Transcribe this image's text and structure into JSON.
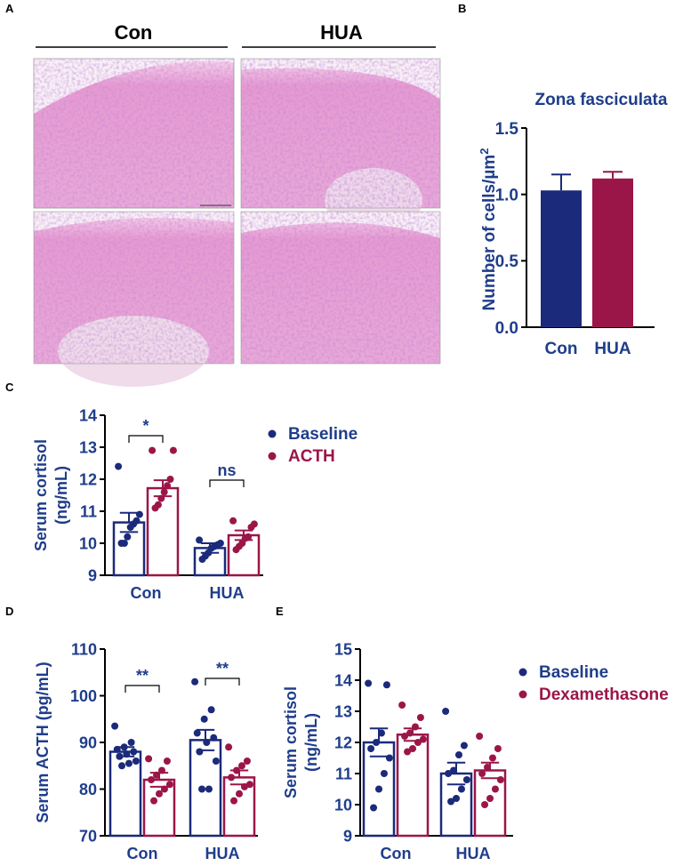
{
  "colors": {
    "navy": "#1b2a7a",
    "crimson": "#9b1648",
    "axis_text": "#1f3d8a",
    "black": "#000000",
    "micro_bg": "#eaa6d6"
  },
  "panels": {
    "A": {
      "letter": "A",
      "group_labels": [
        "Con",
        "HUA"
      ]
    },
    "B": {
      "letter": "B"
    },
    "C": {
      "letter": "C"
    },
    "D": {
      "letter": "D"
    },
    "E": {
      "letter": "E"
    }
  },
  "chart_data": [
    {
      "id": "B",
      "type": "bar",
      "title": "Zona fasciculata",
      "ylabel": "Number of cells/µm²",
      "ylabel_main": "Number of cells/µm",
      "ylabel_sup": "2",
      "categories": [
        "Con",
        "HUA"
      ],
      "values": [
        1.03,
        1.12
      ],
      "errors": [
        0.12,
        0.05
      ],
      "ylim": [
        0,
        1.5
      ],
      "yticks": [
        "0.0",
        "0.5",
        "1.0",
        "1.5"
      ],
      "ytick_values": [
        0,
        0.5,
        1.0,
        1.5
      ]
    },
    {
      "id": "C",
      "type": "bar",
      "ylabel_lines": [
        "Serum cortisol",
        "(ng/mL)"
      ],
      "categories": [
        "Con",
        "HUA"
      ],
      "ylim": [
        9,
        14
      ],
      "yticks": [
        "9",
        "10",
        "11",
        "12",
        "13",
        "14"
      ],
      "ytick_values": [
        9,
        10,
        11,
        12,
        13,
        14
      ],
      "legend": [
        "Baseline",
        "ACTH"
      ],
      "significance": [
        "*",
        "ns"
      ],
      "series": [
        {
          "means": [
            10.65,
            9.85
          ],
          "errors": [
            0.3,
            0.15
          ],
          "points": [
            [
              12.4,
              10.9,
              10.7,
              10.6,
              10.5,
              10.2,
              10.0,
              10.0
            ],
            [
              10.1,
              10.0,
              9.95,
              9.9,
              9.85,
              9.7,
              9.6,
              9.5
            ]
          ]
        },
        {
          "means": [
            11.72,
            10.25
          ],
          "errors": [
            0.25,
            0.15
          ],
          "points": [
            [
              12.9,
              12.9,
              12.0,
              11.8,
              11.6,
              11.4,
              11.2,
              11.1
            ],
            [
              10.7,
              10.6,
              10.5,
              10.2,
              10.15,
              10.0,
              9.9,
              9.8
            ]
          ]
        }
      ]
    },
    {
      "id": "D",
      "type": "bar",
      "ylabel": "Serum ACTH (pg/mL)",
      "categories": [
        "Con",
        "HUA"
      ],
      "ylim": [
        70,
        110
      ],
      "yticks": [
        "70",
        "80",
        "90",
        "100",
        "110"
      ],
      "ytick_values": [
        70,
        80,
        90,
        100,
        110
      ],
      "significance": [
        "**",
        "**"
      ],
      "series": [
        {
          "means": [
            88.0,
            90.5
          ],
          "errors": [
            1.0,
            2.2
          ],
          "points": [
            [
              93.5,
              90.0,
              89.0,
              88.5,
              88.0,
              87.5,
              87.0,
              86.0,
              85.5,
              85.0
            ],
            [
              103.0,
              97.0,
              95.0,
              92.0,
              91.0,
              90.0,
              88.0,
              86.0,
              80.0,
              80.0
            ]
          ]
        },
        {
          "means": [
            82.0,
            82.5
          ],
          "errors": [
            1.5,
            1.5
          ],
          "points": [
            [
              86.5,
              86.0,
              84.0,
              83.0,
              82.0,
              81.0,
              80.0,
              79.0,
              77.5
            ],
            [
              89.0,
              86.0,
              85.0,
              84.0,
              82.5,
              81.0,
              80.5,
              79.0,
              77.5
            ]
          ]
        }
      ]
    },
    {
      "id": "E",
      "type": "bar",
      "ylabel_lines": [
        "Serum cortisol",
        "(ng/mL)"
      ],
      "categories": [
        "Con",
        "HUA"
      ],
      "ylim": [
        9,
        15
      ],
      "yticks": [
        "9",
        "10",
        "11",
        "12",
        "13",
        "14",
        "15"
      ],
      "ytick_values": [
        9,
        10,
        11,
        12,
        13,
        14,
        15
      ],
      "legend": [
        "Baseline",
        "Dexamethasone"
      ],
      "series": [
        {
          "means": [
            12.0,
            11.0
          ],
          "errors": [
            0.45,
            0.35
          ],
          "points": [
            [
              13.9,
              13.85,
              12.3,
              12.0,
              11.8,
              11.5,
              11.0,
              10.5,
              9.9
            ],
            [
              13.0,
              11.9,
              11.6,
              11.1,
              11.0,
              10.8,
              10.5,
              10.2,
              10.1
            ]
          ]
        },
        {
          "means": [
            12.25,
            11.1
          ],
          "errors": [
            0.2,
            0.25
          ],
          "points": [
            [
              13.2,
              12.8,
              12.5,
              12.3,
              12.2,
              12.1,
              12.0,
              11.8,
              11.7
            ],
            [
              12.2,
              11.8,
              11.5,
              11.2,
              11.0,
              10.8,
              10.5,
              10.2,
              10.0
            ]
          ]
        }
      ]
    }
  ]
}
